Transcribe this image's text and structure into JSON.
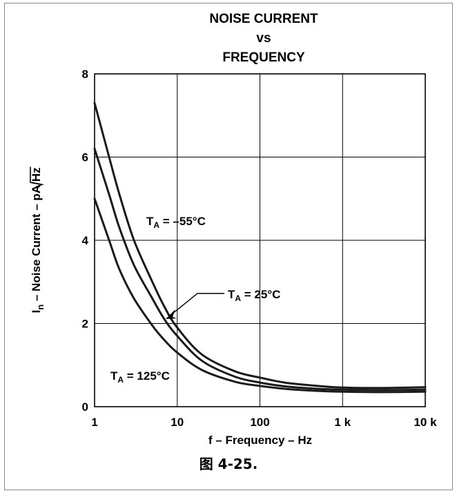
{
  "chart_data": {
    "type": "line",
    "title": [
      "NOISE CURRENT",
      "vs",
      "FREQUENCY"
    ],
    "xlabel": "f – Frequency – Hz",
    "ylabel": {
      "prefix": "I",
      "sub": "n",
      "mid": " – Noise Current – pA/",
      "radicand": "Hz"
    },
    "xscale": "log",
    "xlim": [
      1,
      10000
    ],
    "ylim": [
      0,
      8
    ],
    "x_ticks": [
      {
        "value": 1,
        "label": "1"
      },
      {
        "value": 10,
        "label": "10"
      },
      {
        "value": 100,
        "label": "100"
      },
      {
        "value": 1000,
        "label": "1 k"
      },
      {
        "value": 10000,
        "label": "10 k"
      }
    ],
    "y_ticks": [
      {
        "value": 0,
        "label": "0"
      },
      {
        "value": 2,
        "label": "2"
      },
      {
        "value": 4,
        "label": "4"
      },
      {
        "value": 6,
        "label": "6"
      },
      {
        "value": 8,
        "label": "8"
      }
    ],
    "grid": true,
    "series": [
      {
        "name": "TA = –55°C",
        "x": [
          1,
          1.5,
          2,
          3,
          5,
          7,
          10,
          20,
          50,
          100,
          200,
          500,
          1000,
          3000,
          10000
        ],
        "y": [
          7.3,
          6.0,
          5.1,
          4.0,
          3.0,
          2.4,
          1.9,
          1.25,
          0.85,
          0.7,
          0.58,
          0.5,
          0.46,
          0.45,
          0.47
        ]
      },
      {
        "name": "TA = 25°C",
        "x": [
          1,
          1.5,
          2,
          3,
          5,
          7,
          10,
          20,
          50,
          100,
          200,
          500,
          1000,
          3000,
          10000
        ],
        "y": [
          6.2,
          5.1,
          4.3,
          3.4,
          2.6,
          2.1,
          1.7,
          1.1,
          0.72,
          0.58,
          0.49,
          0.43,
          0.41,
          0.4,
          0.41
        ]
      },
      {
        "name": "TA = 125°C",
        "x": [
          1,
          1.5,
          2,
          3,
          5,
          7,
          10,
          20,
          50,
          100,
          200,
          500,
          1000,
          3000,
          10000
        ],
        "y": [
          5.0,
          4.0,
          3.3,
          2.6,
          1.95,
          1.6,
          1.3,
          0.88,
          0.6,
          0.5,
          0.43,
          0.38,
          0.36,
          0.35,
          0.36
        ]
      }
    ],
    "annotations": [
      {
        "main": "T",
        "sub": "A",
        "rest": " = –55°C"
      },
      {
        "main": "T",
        "sub": "A",
        "rest": " = 25°C"
      },
      {
        "main": "T",
        "sub": "A",
        "rest": " = 125°C"
      }
    ]
  },
  "caption": "图 4-25."
}
